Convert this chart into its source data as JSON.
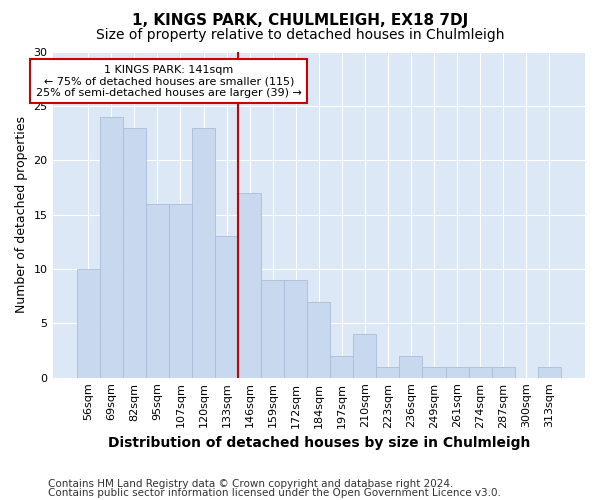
{
  "title": "1, KINGS PARK, CHULMLEIGH, EX18 7DJ",
  "subtitle": "Size of property relative to detached houses in Chulmleigh",
  "xlabel": "Distribution of detached houses by size in Chulmleigh",
  "ylabel": "Number of detached properties",
  "categories": [
    "56sqm",
    "69sqm",
    "82sqm",
    "95sqm",
    "107sqm",
    "120sqm",
    "133sqm",
    "146sqm",
    "159sqm",
    "172sqm",
    "184sqm",
    "197sqm",
    "210sqm",
    "223sqm",
    "236sqm",
    "249sqm",
    "261sqm",
    "274sqm",
    "287sqm",
    "300sqm",
    "313sqm"
  ],
  "values": [
    10,
    24,
    23,
    16,
    16,
    23,
    13,
    17,
    9,
    9,
    7,
    2,
    4,
    1,
    2,
    1,
    1,
    1,
    1,
    0,
    1
  ],
  "bar_color": "#c8d8ee",
  "bar_edgecolor": "#aabdd8",
  "vline_x_index": 7,
  "vline_color": "#cc0000",
  "ylim": [
    0,
    30
  ],
  "yticks": [
    0,
    5,
    10,
    15,
    20,
    25,
    30
  ],
  "annotation_text": "1 KINGS PARK: 141sqm\n← 75% of detached houses are smaller (115)\n25% of semi-detached houses are larger (39) →",
  "annotation_box_facecolor": "#ffffff",
  "annotation_box_edgecolor": "#cc0000",
  "footer_line1": "Contains HM Land Registry data © Crown copyright and database right 2024.",
  "footer_line2": "Contains public sector information licensed under the Open Government Licence v3.0.",
  "fig_background": "#ffffff",
  "plot_background": "#dce8f5",
  "grid_color": "#ffffff",
  "title_fontsize": 11,
  "subtitle_fontsize": 10,
  "axis_label_fontsize": 9,
  "tick_fontsize": 8,
  "footer_fontsize": 7.5
}
